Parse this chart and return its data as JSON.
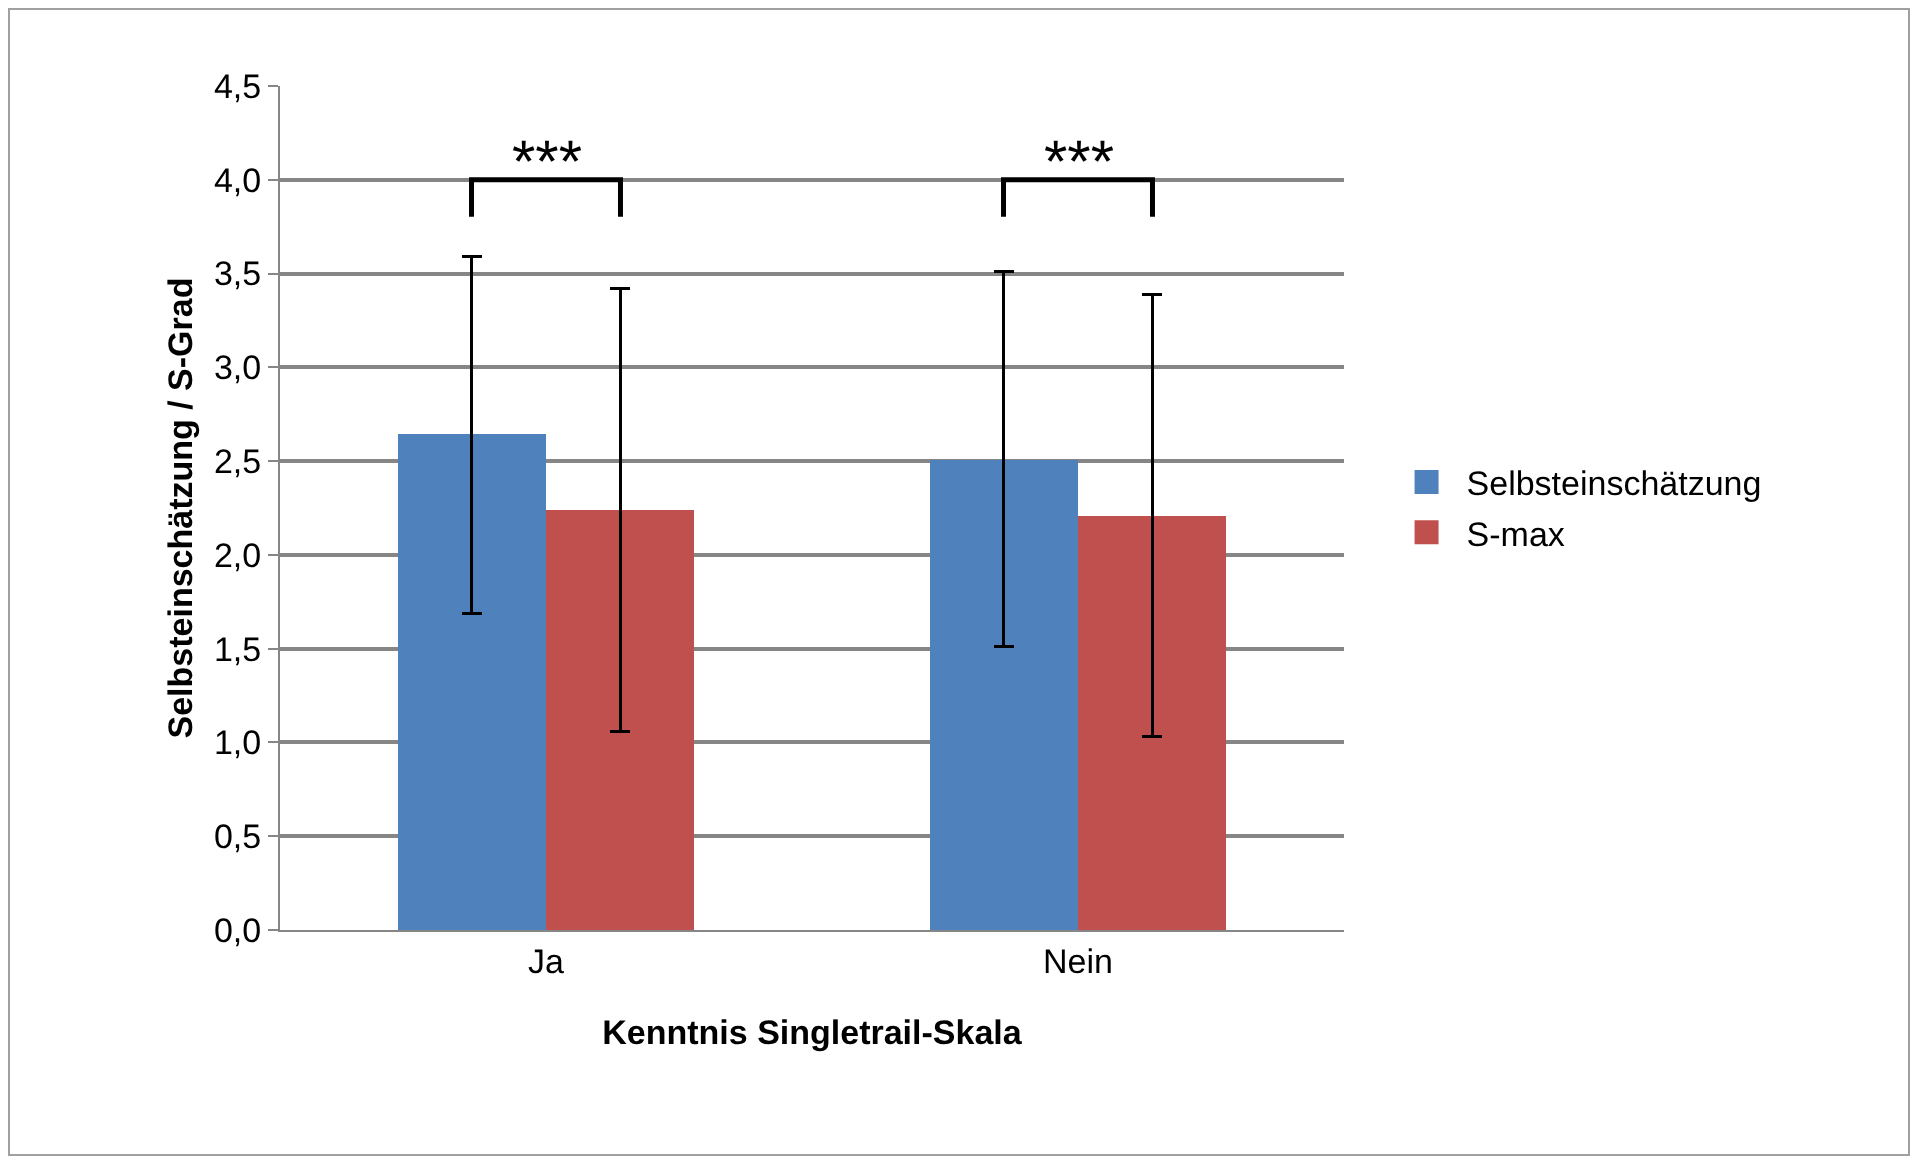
{
  "chart_data": {
    "type": "bar",
    "xlabel": "Kenntnis Singletrail-Skala",
    "ylabel": "Selbsteinschätzung / S-Grad",
    "categories": [
      "Ja",
      "Nein"
    ],
    "series": [
      {
        "name": "Selbsteinschätzung",
        "color": "#4f81bd",
        "values": [
          2.64,
          2.51
        ],
        "errors": [
          0.95,
          1.0
        ]
      },
      {
        "name": "S-max",
        "color": "#c0504d",
        "values": [
          2.24,
          2.21
        ],
        "errors": [
          1.18,
          1.18
        ]
      }
    ],
    "ylim": [
      0,
      4.5
    ],
    "yticks": [
      {
        "value": 0,
        "label": "0,0"
      },
      {
        "value": 0.5,
        "label": "0,5"
      },
      {
        "value": 1,
        "label": "1,0"
      },
      {
        "value": 1.5,
        "label": "1,5"
      },
      {
        "value": 2,
        "label": "2,0"
      },
      {
        "value": 2.5,
        "label": "2,5"
      },
      {
        "value": 3,
        "label": "3,0"
      },
      {
        "value": 3.5,
        "label": "3,5"
      },
      {
        "value": 4,
        "label": "4,0"
      },
      {
        "value": 4.5,
        "label": "4,5"
      }
    ],
    "annotations": [
      "***",
      "***"
    ],
    "grid": "y",
    "legend": "right"
  }
}
